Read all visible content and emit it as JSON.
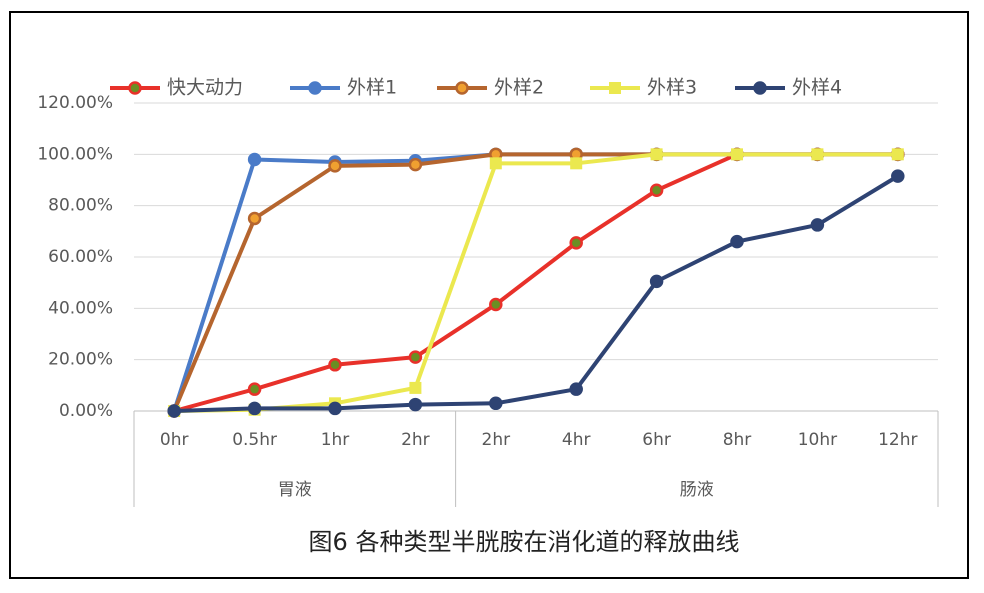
{
  "chart_data": {
    "type": "line",
    "title": "图6 各种类型半胱胺在消化道的释放曲线",
    "categories": [
      "0hr",
      "0.5hr",
      "1hr",
      "2hr",
      "2hr",
      "4hr",
      "6hr",
      "8hr",
      "10hr",
      "12hr"
    ],
    "category_groups": [
      "胃液",
      "胃液",
      "胃液",
      "胃液",
      "肠液",
      "肠液",
      "肠液",
      "肠液",
      "肠液",
      "肠液"
    ],
    "series": [
      {
        "name": "快大动力",
        "color": "#e8312a",
        "marker": "circle",
        "marker_fill": "#6b8e23",
        "values": [
          0,
          8.5,
          18,
          21,
          41.5,
          65.5,
          86,
          100,
          100,
          100
        ]
      },
      {
        "name": "外样1",
        "color": "#4a7bc8",
        "marker": "circle",
        "marker_fill": "#4a7bc8",
        "values": [
          0,
          98,
          97,
          97.5,
          100,
          100,
          100,
          100,
          100,
          100
        ]
      },
      {
        "name": "外样2",
        "color": "#b5652e",
        "marker": "circle",
        "marker_fill": "#f0a030",
        "values": [
          0,
          75,
          95.5,
          96,
          100,
          100,
          100,
          100,
          100,
          100
        ]
      },
      {
        "name": "外样3",
        "color": "#ebe84f",
        "marker": "square",
        "marker_fill": "#ebe84f",
        "values": [
          0,
          0.5,
          3,
          9,
          96.5,
          96.5,
          100,
          100,
          100,
          100
        ]
      },
      {
        "name": "外样4",
        "color": "#2e4373",
        "marker": "circle",
        "marker_fill": "#2e4373",
        "values": [
          0,
          1,
          1,
          2.5,
          3,
          8.5,
          50.5,
          66,
          72.5,
          91.5
        ]
      }
    ],
    "ylim": [
      0,
      120
    ],
    "yticks": [
      {
        "value": 0,
        "label": "0.00%"
      },
      {
        "value": 20,
        "label": "20.00%"
      },
      {
        "value": 40,
        "label": "40.00%"
      },
      {
        "value": 60,
        "label": "60.00%"
      },
      {
        "value": 80,
        "label": "80.00%"
      },
      {
        "value": 100,
        "label": "100.00%"
      },
      {
        "value": 120,
        "label": "120.00%"
      }
    ],
    "grid": true,
    "legend": "top"
  }
}
